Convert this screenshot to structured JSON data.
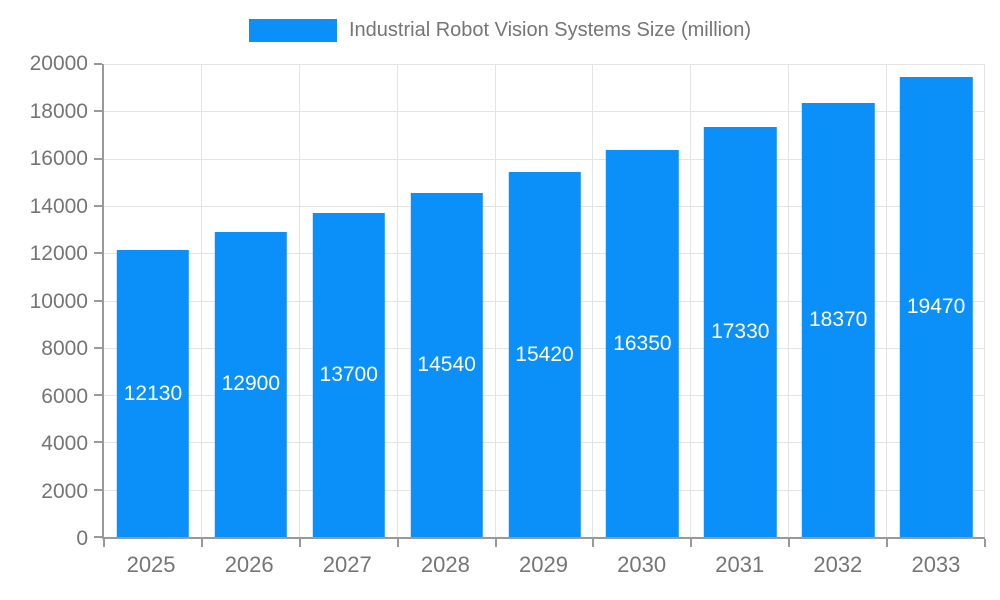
{
  "legend": {
    "label": "Industrial Robot Vision Systems Size (million)"
  },
  "chart_data": {
    "type": "bar",
    "title": "Industrial Robot Vision Systems Size (million)",
    "categories": [
      "2025",
      "2026",
      "2027",
      "2028",
      "2029",
      "2030",
      "2031",
      "2032",
      "2033"
    ],
    "values": [
      12130,
      12900,
      13700,
      14540,
      15420,
      16350,
      17330,
      18370,
      19470
    ],
    "xlabel": "",
    "ylabel": "",
    "ylim": [
      0,
      20000
    ],
    "yticks": [
      0,
      2000,
      4000,
      6000,
      8000,
      10000,
      12000,
      14000,
      16000,
      18000,
      20000
    ],
    "grid": true,
    "legend_position": "top-center",
    "value_labels": "inside-center",
    "colors": {
      "bar": "#0a90f8",
      "value_label": "#ffffff",
      "axis": "#999999",
      "grid": "#e4e4e4",
      "tick_label": "#757575"
    }
  }
}
